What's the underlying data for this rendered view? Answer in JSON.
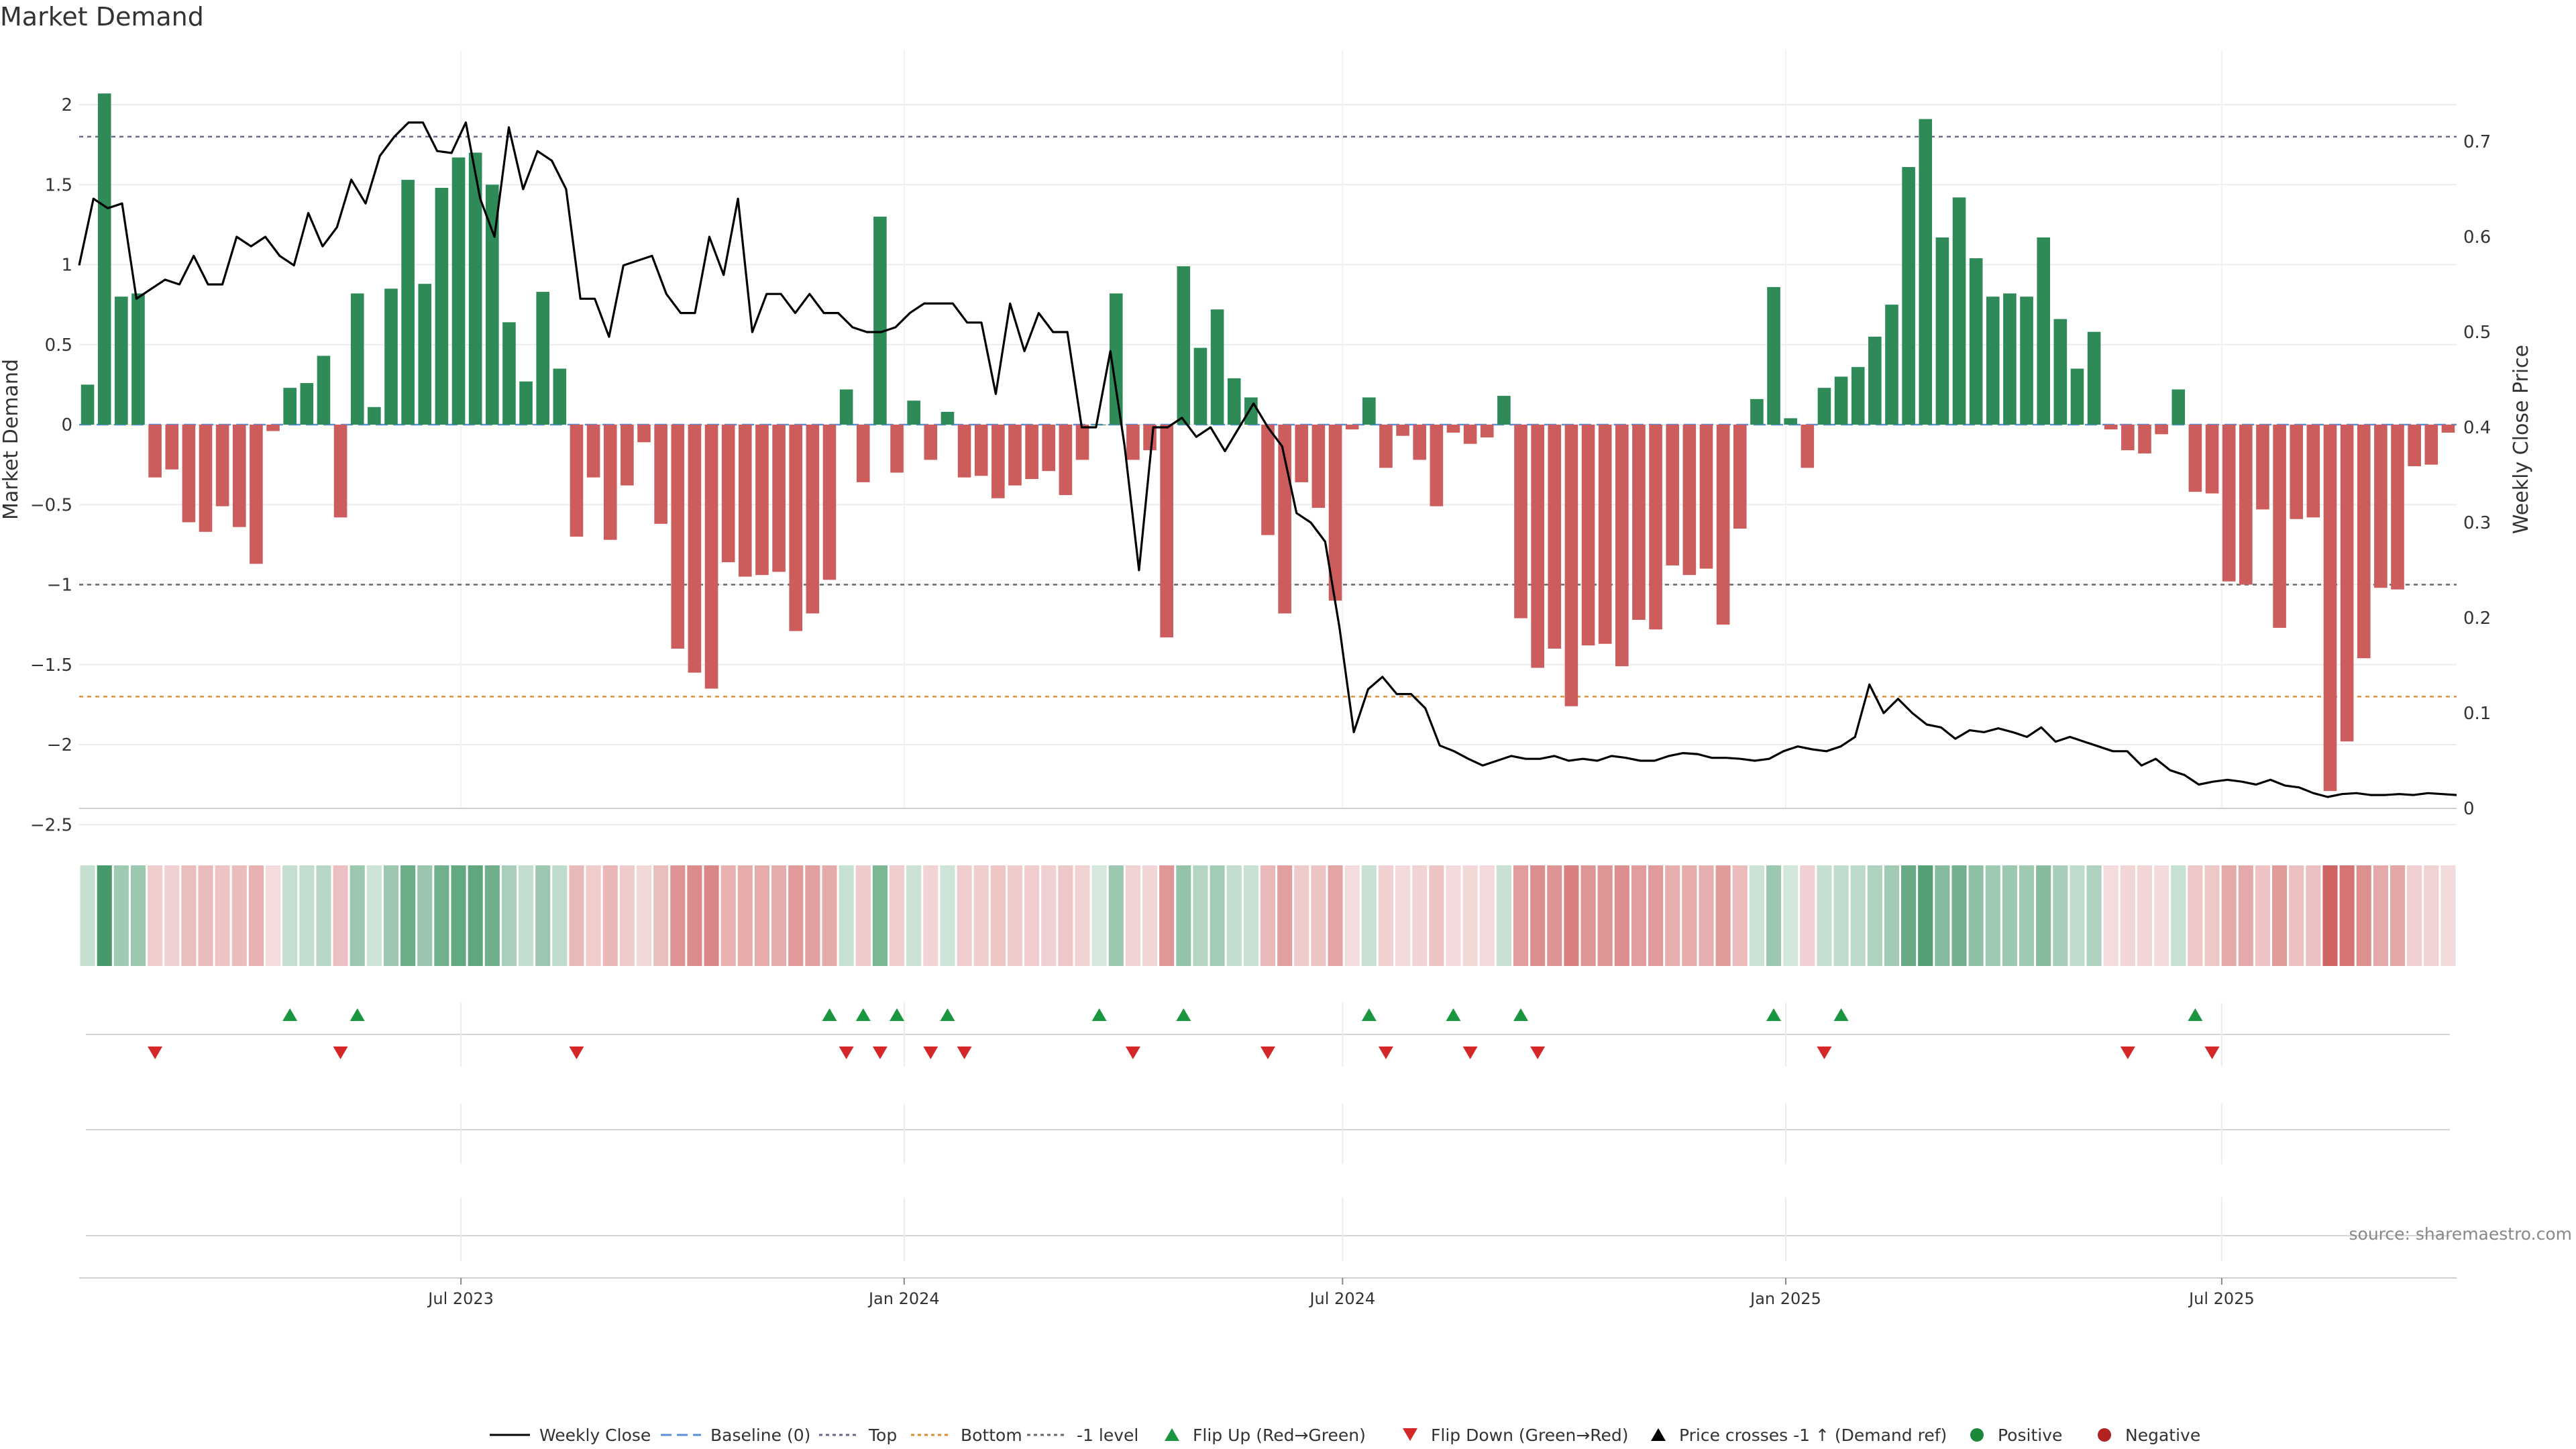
{
  "chart_data": {
    "type": "bar",
    "title": "Market Demand",
    "ylabel": "Market Demand",
    "y2label": "Weekly Close Price",
    "ylim": [
      -2.5,
      2.3
    ],
    "y2lim": [
      0,
      0.75
    ],
    "y_ticks": [
      2,
      1.5,
      1,
      0.5,
      0,
      -0.5,
      -1,
      -1.5,
      -2,
      -2.5
    ],
    "y_tick_labels": [
      "2",
      "1.5",
      "1",
      "0.5",
      "0",
      "−0.5",
      "−1",
      "−1.5",
      "−2",
      "−2.5"
    ],
    "y2_ticks": [
      0.7,
      0.6,
      0.5,
      0.4,
      0.3,
      0.2,
      0.1,
      0
    ],
    "y2_tick_labels": [
      "0.7",
      "0.6",
      "0.5",
      "0.4",
      "0.3",
      "0.2",
      "0.1",
      "0"
    ],
    "x_start": "2023-01-27",
    "x_ticks": [
      "2023-07-01",
      "2024-01-01",
      "2024-07-01",
      "2025-01-01",
      "2025-07-01"
    ],
    "x_tick_labels": [
      "Jul 2023",
      "Jan 2024",
      "Jul 2024",
      "Jan 2025",
      "Jul 2025"
    ],
    "grid": true,
    "reference_lines": [
      {
        "name": "Top",
        "value": 1.8,
        "color": "#666688",
        "dash": "dotted"
      },
      {
        "name": "-1 level",
        "value": -1.0,
        "color": "#666666",
        "dash": "dotted"
      },
      {
        "name": "Bottom",
        "value": -1.7,
        "color": "#d98c2e",
        "dash": "dotted"
      },
      {
        "name": "Baseline (0)",
        "value": 0,
        "color": "#5a8fd8",
        "dash": "dashed"
      }
    ],
    "series": [
      {
        "name": "Market Demand",
        "kind": "bar",
        "values": [
          0.25,
          2.07,
          0.8,
          0.82,
          -0.33,
          -0.28,
          -0.61,
          -0.67,
          -0.51,
          -0.64,
          -0.87,
          -0.04,
          0.23,
          0.26,
          0.43,
          -0.58,
          0.82,
          0.11,
          0.85,
          1.53,
          0.88,
          1.48,
          1.67,
          1.7,
          1.5,
          0.64,
          0.27,
          0.83,
          0.35,
          -0.7,
          -0.33,
          -0.72,
          -0.38,
          -0.11,
          -0.62,
          -1.4,
          -1.55,
          -1.65,
          -0.86,
          -0.95,
          -0.94,
          -0.92,
          -1.29,
          -1.18,
          -0.97,
          0.22,
          -0.36,
          1.3,
          -0.3,
          0.15,
          -0.22,
          0.08,
          -0.33,
          -0.32,
          -0.46,
          -0.38,
          -0.34,
          -0.29,
          -0.44,
          -0.22,
          0.0,
          0.82,
          -0.22,
          -0.16,
          -1.33,
          0.99,
          0.48,
          0.72,
          0.29,
          0.17,
          -0.69,
          -1.18,
          -0.36,
          -0.52,
          -1.1,
          -0.03,
          0.17,
          -0.27,
          -0.07,
          -0.22,
          -0.51,
          -0.05,
          -0.12,
          -0.08,
          0.18,
          -1.21,
          -1.52,
          -1.4,
          -1.76,
          -1.38,
          -1.37,
          -1.51,
          -1.22,
          -1.28,
          -0.88,
          -0.94,
          -0.9,
          -1.25,
          -0.65,
          0.16,
          0.86,
          0.04,
          -0.27,
          0.23,
          0.3,
          0.36,
          0.55,
          0.75,
          1.61,
          1.91,
          1.17,
          1.42,
          1.04,
          0.8,
          0.82,
          0.8,
          1.17,
          0.66,
          0.35,
          0.58,
          -0.03,
          -0.16,
          -0.18,
          -0.06,
          0.22,
          -0.42,
          -0.43,
          -0.98,
          -1.0,
          -0.53,
          -1.27,
          -0.59,
          -0.58,
          -2.29,
          -1.98,
          -1.46,
          -1.02,
          -1.03,
          -0.26,
          -0.25,
          -0.05
        ],
        "positive_color": "#2e8b57",
        "negative_color": "#cd5c5c"
      },
      {
        "name": "Weekly Close",
        "kind": "line",
        "axis": "right",
        "color": "#000000",
        "values": [
          0.57,
          0.64,
          0.63,
          0.635,
          0.535,
          0.545,
          0.555,
          0.55,
          0.58,
          0.55,
          0.55,
          0.6,
          0.59,
          0.6,
          0.58,
          0.57,
          0.625,
          0.59,
          0.61,
          0.66,
          0.635,
          0.685,
          0.705,
          0.72,
          0.72,
          0.69,
          0.688,
          0.72,
          0.64,
          0.6,
          0.715,
          0.65,
          0.69,
          0.68,
          0.65,
          0.535,
          0.535,
          0.495,
          0.57,
          0.575,
          0.58,
          0.54,
          0.52,
          0.52,
          0.6,
          0.56,
          0.64,
          0.5,
          0.54,
          0.54,
          0.52,
          0.54,
          0.52,
          0.52,
          0.505,
          0.5,
          0.5,
          0.505,
          0.52,
          0.53,
          0.53,
          0.53,
          0.51,
          0.51,
          0.435,
          0.53,
          0.48,
          0.52,
          0.5,
          0.5,
          0.4,
          0.4,
          0.48,
          0.38,
          0.25,
          0.4,
          0.4,
          0.41,
          0.39,
          0.4,
          0.375,
          0.4,
          0.425,
          0.4,
          0.38,
          0.31,
          0.3,
          0.28,
          0.19,
          0.08,
          0.125,
          0.138,
          0.12,
          0.12,
          0.105,
          0.066,
          0.06,
          0.052,
          0.045,
          0.05,
          0.055,
          0.052,
          0.052,
          0.055,
          0.05,
          0.052,
          0.05,
          0.055,
          0.053,
          0.05,
          0.05,
          0.055,
          0.058,
          0.057,
          0.053,
          0.053,
          0.052,
          0.05,
          0.052,
          0.06,
          0.065,
          0.062,
          0.06,
          0.065,
          0.075,
          0.13,
          0.1,
          0.115,
          0.1,
          0.088,
          0.085,
          0.073,
          0.082,
          0.08,
          0.084,
          0.08,
          0.075,
          0.085,
          0.07,
          0.075,
          0.07,
          0.065,
          0.06,
          0.06,
          0.045,
          0.052,
          0.04,
          0.035,
          0.025,
          0.028,
          0.03,
          0.028,
          0.025,
          0.03,
          0.024,
          0.022,
          0.016,
          0.012,
          0.015,
          0.016,
          0.014,
          0.014,
          0.015,
          0.014,
          0.016,
          0.015,
          0.014
        ]
      }
    ],
    "flip_up_weeks": [
      12,
      16,
      44,
      46,
      48,
      51,
      60,
      65,
      76,
      81,
      85,
      100,
      104,
      125
    ],
    "flip_down_weeks": [
      4,
      15,
      29,
      45,
      47,
      50,
      52,
      62,
      70,
      77,
      82,
      86,
      103,
      121,
      126
    ],
    "legend": {
      "placement": "bottom-center",
      "items": [
        {
          "label": "Weekly Close",
          "marker": "line",
          "color": "#000000"
        },
        {
          "label": "Baseline (0)",
          "marker": "dashed",
          "color": "#5a8fd8"
        },
        {
          "label": "Top",
          "marker": "dotted",
          "color": "#666688"
        },
        {
          "label": "Bottom",
          "marker": "dotted",
          "color": "#d98c2e"
        },
        {
          "label": "-1 level",
          "marker": "dotted",
          "color": "#666666"
        },
        {
          "label": "Flip Up (Red→Green)",
          "marker": "triangle-up",
          "color": "#1a9641"
        },
        {
          "label": "Flip Down (Green→Red)",
          "marker": "triangle-down",
          "color": "#d62728"
        },
        {
          "label": "Price crosses -1 ↑ (Demand ref)",
          "marker": "triangle-up",
          "color": "#000000"
        },
        {
          "label": "Positive",
          "marker": "circle",
          "color": "#1a8a3a"
        },
        {
          "label": "Negative",
          "marker": "circle",
          "color": "#b22222"
        }
      ]
    },
    "source": "source: sharemaestro.com"
  }
}
